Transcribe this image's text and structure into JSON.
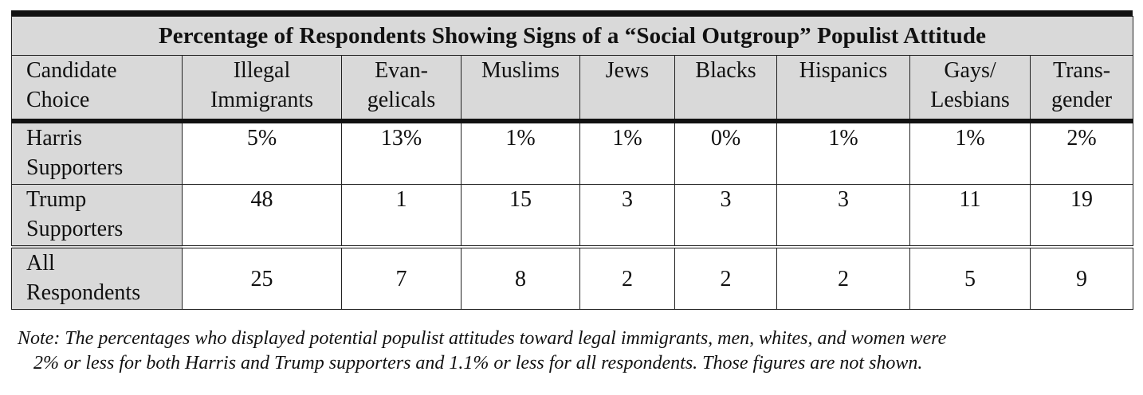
{
  "chart_data": {
    "type": "table",
    "title": "Percentage of Respondents Showing Signs of a “Social Outgroup” Populist Attitude",
    "row_header_label": [
      "Candidate",
      "Choice"
    ],
    "columns": [
      [
        "Illegal",
        "Immigrants"
      ],
      [
        "Evan-",
        "gelicals"
      ],
      [
        "Muslims"
      ],
      [
        "Jews"
      ],
      [
        "Blacks"
      ],
      [
        "Hispanics"
      ],
      [
        "Gays/",
        "Lesbians"
      ],
      [
        "Trans-",
        "gender"
      ]
    ],
    "rows": [
      {
        "label": [
          "Harris",
          "Supporters"
        ],
        "values": [
          "5%",
          "13%",
          "1%",
          "1%",
          "0%",
          "1%",
          "1%",
          "2%"
        ]
      },
      {
        "label": [
          "Trump",
          "Supporters"
        ],
        "values": [
          "48",
          "1",
          "15",
          "3",
          "3",
          "3",
          "11",
          "19"
        ]
      },
      {
        "label": [
          "All",
          "Respondents"
        ],
        "values": [
          "25",
          "7",
          "8",
          "2",
          "2",
          "2",
          "5",
          "9"
        ]
      }
    ],
    "note": [
      "Note: The percentages who displayed potential populist attitudes toward legal immigrants, men, whites, and women were",
      "2% or less for both Harris and Trump supporters and 1.1% or less for all respondents. Those figures are not shown."
    ]
  },
  "colors": {
    "header_fill": "#d9d9d9",
    "rule": "#111111"
  }
}
